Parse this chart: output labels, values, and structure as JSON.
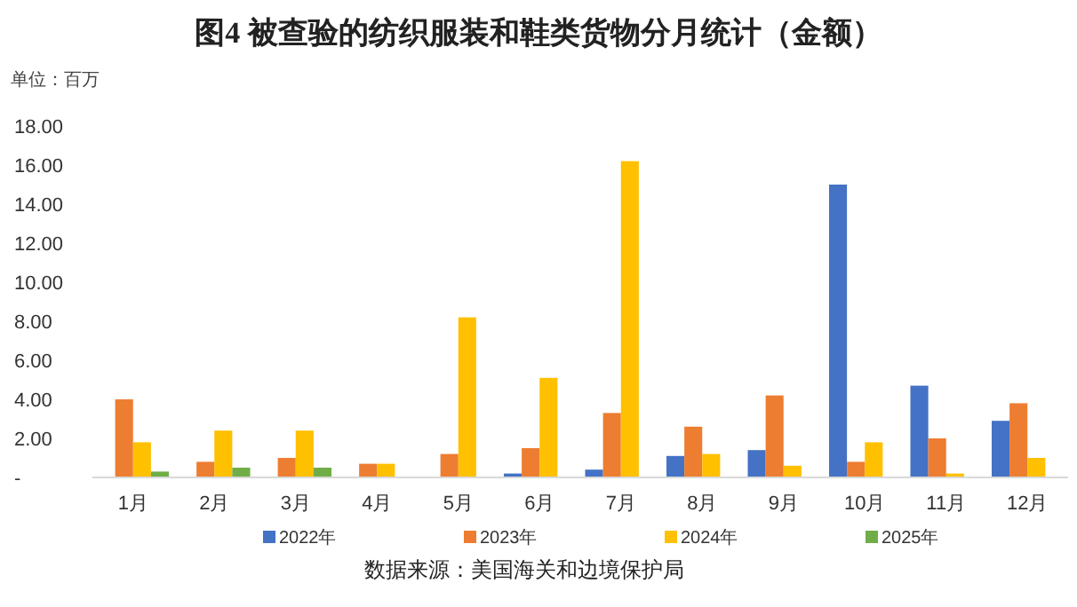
{
  "chart_data": {
    "type": "bar",
    "title": "图4 被查验的纺织服装和鞋类货物分月统计（金额）",
    "ylabel": "单位：百万",
    "categories": [
      "1月",
      "2月",
      "3月",
      "4月",
      "5月",
      "6月",
      "7月",
      "8月",
      "9月",
      "10月",
      "11月",
      "12月"
    ],
    "series": [
      {
        "name": "2022年",
        "color": "#4472c4",
        "values": [
          null,
          null,
          null,
          null,
          null,
          0.2,
          0.4,
          1.1,
          1.4,
          15.0,
          4.7,
          2.9
        ]
      },
      {
        "name": "2023年",
        "color": "#ed7d31",
        "values": [
          4.0,
          0.8,
          1.0,
          0.7,
          1.2,
          1.5,
          3.3,
          2.6,
          4.2,
          0.8,
          2.0,
          3.8
        ]
      },
      {
        "name": "2024年",
        "color": "#ffc000",
        "values": [
          1.8,
          2.4,
          2.4,
          0.7,
          8.2,
          5.1,
          16.2,
          1.2,
          0.6,
          1.8,
          0.2,
          1.0
        ]
      },
      {
        "name": "2025年",
        "color": "#70ad47",
        "values": [
          0.3,
          0.5,
          0.5,
          null,
          null,
          null,
          null,
          null,
          null,
          null,
          null,
          null
        ]
      }
    ],
    "ylim": [
      0,
      18
    ],
    "yticks": [
      {
        "value": 0,
        "label": "-"
      },
      {
        "value": 2,
        "label": "2.00"
      },
      {
        "value": 4,
        "label": "4.00"
      },
      {
        "value": 6,
        "label": "6.00"
      },
      {
        "value": 8,
        "label": "8.00"
      },
      {
        "value": 10,
        "label": "10.00"
      },
      {
        "value": 12,
        "label": "12.00"
      },
      {
        "value": 14,
        "label": "14.00"
      },
      {
        "value": 16,
        "label": "16.00"
      },
      {
        "value": 18,
        "label": "18.00"
      }
    ],
    "grid": false,
    "legend": "bottom",
    "annotations": [
      "数据来源：美国海关和边境保护局"
    ]
  }
}
